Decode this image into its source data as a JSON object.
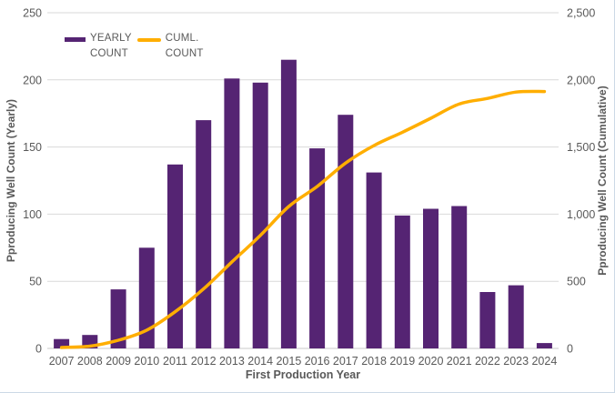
{
  "colors": {
    "bar": "#552473",
    "line": "#FFAE00",
    "gridline": "#D9D9D9",
    "axis_line": "#C9C9C9",
    "text": "#595959",
    "chart_border": "#CCD9E6",
    "background": "#FFFFFF"
  },
  "legend": {
    "items": [
      {
        "id": "yearly-count",
        "lines": [
          "YEARLY",
          "COUNT"
        ],
        "swatch": "bar"
      },
      {
        "id": "cuml-count",
        "lines": [
          "CUML.",
          "COUNT"
        ],
        "swatch": "line"
      }
    ]
  },
  "chart_data": {
    "type": "combo",
    "categories": [
      "2007",
      "2008",
      "2009",
      "2010",
      "2011",
      "2012",
      "2013",
      "2014",
      "2015",
      "2016",
      "2017",
      "2018",
      "2019",
      "2020",
      "2021",
      "2022",
      "2023",
      "2024"
    ],
    "series": [
      {
        "name": "YEARLY COUNT",
        "type": "bar",
        "axis": "left",
        "color": "#552473",
        "values": [
          7,
          10,
          44,
          75,
          137,
          170,
          201,
          198,
          215,
          149,
          174,
          131,
          99,
          104,
          106,
          42,
          47,
          4
        ]
      },
      {
        "name": "CUML. COUNT",
        "type": "line",
        "axis": "right",
        "color": "#FFAE00",
        "values": [
          7,
          17,
          61,
          136,
          273,
          443,
          644,
          842,
          1057,
          1206,
          1380,
          1511,
          1610,
          1714,
          1820,
          1862,
          1909,
          1913
        ]
      }
    ],
    "xlabel": "First Production Year",
    "left_axis": {
      "label": "Pproducing Well Count (Yearly)",
      "min": 0,
      "max": 250,
      "ticks": [
        {
          "value": 0,
          "label": "0"
        },
        {
          "value": 50,
          "label": "50"
        },
        {
          "value": 100,
          "label": "100"
        },
        {
          "value": 150,
          "label": "150"
        },
        {
          "value": 200,
          "label": "200"
        },
        {
          "value": 250,
          "label": "250"
        }
      ]
    },
    "right_axis": {
      "label": "Pproducing Well Count (Cumulative)",
      "min": 0,
      "max": 2500,
      "ticks": [
        {
          "value": 0,
          "label": "0"
        },
        {
          "value": 500,
          "label": "500"
        },
        {
          "value": 1000,
          "label": "1,000"
        },
        {
          "value": 1500,
          "label": "1,500"
        },
        {
          "value": 2000,
          "label": "2,000"
        },
        {
          "value": 2500,
          "label": "2,500"
        }
      ]
    },
    "grid": true,
    "legend_position": "top-left"
  }
}
